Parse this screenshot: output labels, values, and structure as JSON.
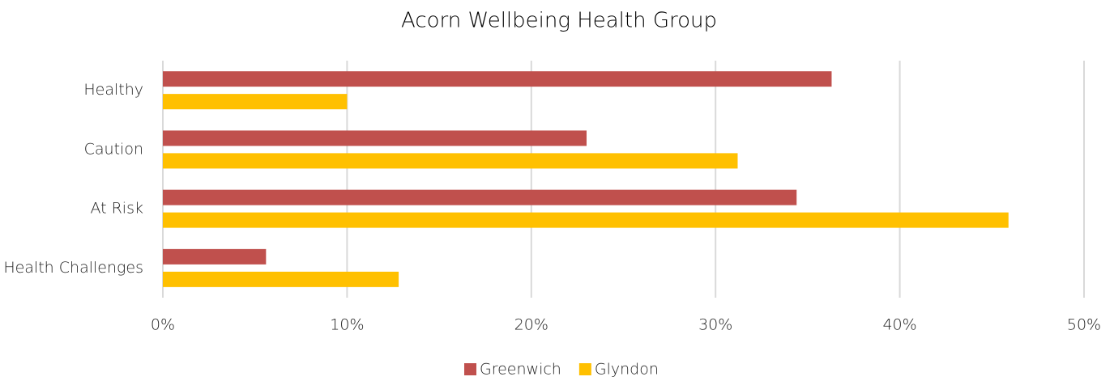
{
  "chart_data": {
    "type": "hbar",
    "title": "Acorn Wellbeing Health Group",
    "categories": [
      "Healthy",
      "Caution",
      "At Risk",
      "Health Challenges"
    ],
    "series": [
      {
        "name": "Greenwich",
        "color": "#c0504d",
        "values": [
          36.3,
          23.0,
          34.4,
          5.6
        ]
      },
      {
        "name": "Glyndon",
        "color": "#ffc000",
        "values": [
          10.0,
          31.2,
          45.9,
          12.8
        ]
      }
    ],
    "xlim": [
      0,
      50
    ],
    "xticks": [
      {
        "value": 0,
        "label": "0%"
      },
      {
        "value": 10,
        "label": "10%"
      },
      {
        "value": 20,
        "label": "20%"
      },
      {
        "value": 30,
        "label": "30%"
      },
      {
        "value": 40,
        "label": "40%"
      },
      {
        "value": 50,
        "label": "50%"
      }
    ],
    "grid": true,
    "legend": "bottom"
  }
}
